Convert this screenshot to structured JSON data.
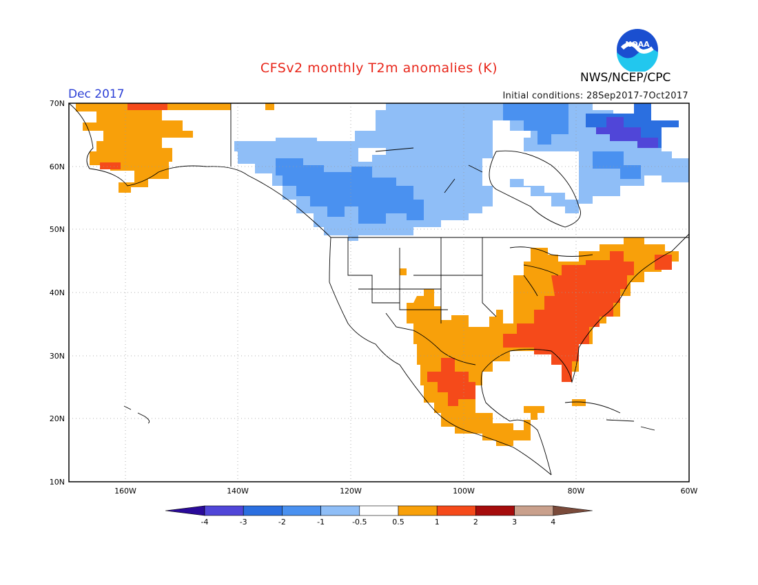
{
  "title": "CFSv2 monthly T2m anomalies (K)",
  "period": "Dec 2017",
  "initial_conditions": "Initial conditions: 28Sep2017-7Oct2017",
  "agency": "NWS/NCEP/CPC",
  "logo_text": "NOAA",
  "lat_labels": [
    "70N",
    "60N",
    "50N",
    "40N",
    "30N",
    "20N",
    "10N"
  ],
  "lon_labels": [
    "160W",
    "140W",
    "120W",
    "100W",
    "80W",
    "60W"
  ],
  "colorbar": {
    "ticks": [
      "-4",
      "-3",
      "-2",
      "-1",
      "-0.5",
      "0.5",
      "1",
      "2",
      "3",
      "4"
    ],
    "colors": [
      "#2a0a9a",
      "#5046d8",
      "#2b6fe0",
      "#4a91f0",
      "#8fbef7",
      "#ffffff",
      "#f8a00a",
      "#f54a1a",
      "#a50c0c",
      "#c9a08c",
      "#7a4a3a"
    ]
  },
  "chart_data": {
    "type": "heatmap",
    "variable": "T2m anomaly",
    "units": "K",
    "lon_range": [
      -172,
      -60
    ],
    "lat_range": [
      10,
      70
    ],
    "regions": [
      {
        "area": "Alaska (most)",
        "class": "0.5 to 1"
      },
      {
        "area": "Northern Alaska coast",
        "class": "1 to 2"
      },
      {
        "area": "Western Canada / NW Territories",
        "class": "-1 to -0.5"
      },
      {
        "area": "British Columbia interior / Alberta",
        "class": "-2 to -1"
      },
      {
        "area": "Nunavut / Baffin Island",
        "class": "-2 to -1"
      },
      {
        "area": "Baffin Island east coast",
        "class": "-3 to -2"
      },
      {
        "area": "Quebec / Labrador",
        "class": "-1 to -0.5"
      },
      {
        "area": "Southern Rockies / Texas / Mexico",
        "class": "0.5 to 1"
      },
      {
        "area": "Mexico interior",
        "class": "1 to 2"
      },
      {
        "area": "Ohio Valley / Great Lakes",
        "class": "0.5 to 1"
      },
      {
        "area": "Southeast US / Mid-Atlantic / Northeast",
        "class": "1 to 2"
      },
      {
        "area": "Western US / Northern Plains",
        "class": "-0.5 to 0.5"
      }
    ]
  }
}
